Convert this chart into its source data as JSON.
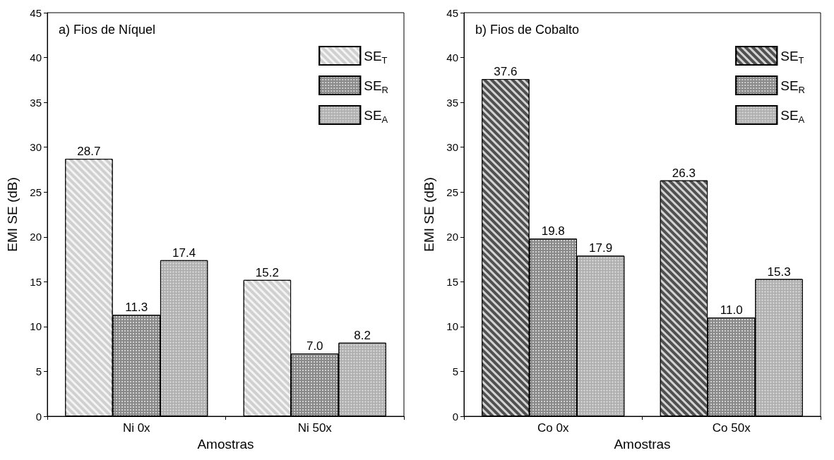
{
  "chart_data": [
    {
      "type": "bar",
      "title": "a) Fios de Níquel",
      "xlabel": "Amostras",
      "ylabel": "EMI SE (dB)",
      "categories": [
        "Ni 0x",
        "Ni 50x"
      ],
      "ylim": [
        0,
        45
      ],
      "yticks": [
        0,
        5,
        10,
        15,
        20,
        25,
        30,
        35,
        40,
        45
      ],
      "legend": "top right",
      "series": [
        {
          "name": "SE$_{T}$",
          "color": "#d0d0d0",
          "values": [
            28.7,
            15.2
          ],
          "value_labels": [
            "28.7",
            "15.2"
          ]
        },
        {
          "name": "SE$_{R}$",
          "color": "#8a8a8a",
          "values": [
            11.3,
            7.0
          ],
          "value_labels": [
            "11.3",
            "7.0"
          ]
        },
        {
          "name": "SE$_{A}$",
          "color": "#b0b0b0",
          "values": [
            17.4,
            8.2
          ],
          "value_labels": [
            "17.4",
            "8.2"
          ]
        }
      ]
    },
    {
      "type": "bar",
      "title": "b) Fios de Cobalto",
      "xlabel": "Amostras",
      "ylabel": "EMI SE (dB)",
      "categories": [
        "Co 0x",
        "Co 50x"
      ],
      "ylim": [
        0,
        45
      ],
      "yticks": [
        0,
        5,
        10,
        15,
        20,
        25,
        30,
        35,
        40,
        45
      ],
      "legend": "top right",
      "series": [
        {
          "name": "SE$_{T}$",
          "color": "#505050",
          "values": [
            37.6,
            26.3
          ],
          "value_labels": [
            "37.6",
            "26.3"
          ]
        },
        {
          "name": "SE$_{R}$",
          "color": "#8a8a8a",
          "values": [
            19.8,
            11.0
          ],
          "value_labels": [
            "19.8",
            "11.0"
          ]
        },
        {
          "name": "SE$_{A}$",
          "color": "#b0b0b0",
          "values": [
            17.9,
            15.3
          ],
          "value_labels": [
            "17.9",
            "15.3"
          ]
        }
      ]
    }
  ]
}
